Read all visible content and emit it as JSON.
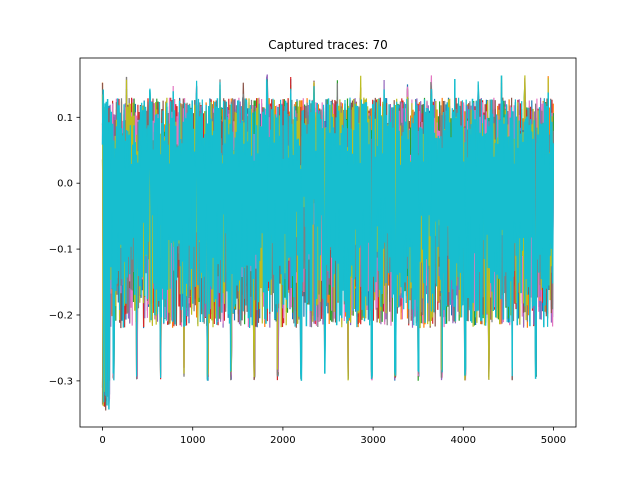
{
  "chart_data": {
    "type": "line",
    "title": "Captured traces: 70",
    "xlabel": "",
    "ylabel": "",
    "xlim": [
      -250,
      5250
    ],
    "ylim": [
      -0.37,
      0.19
    ],
    "x_ticks": [
      0,
      1000,
      2000,
      3000,
      4000,
      5000
    ],
    "x_tick_labels": [
      "0",
      "1000",
      "2000",
      "3000",
      "4000",
      "5000"
    ],
    "y_ticks": [
      -0.3,
      -0.2,
      -0.1,
      0.0,
      0.1
    ],
    "y_tick_labels": [
      "−0.3",
      "−0.2",
      "−0.1",
      "0.0",
      "0.1"
    ],
    "grid": false,
    "legend": "none",
    "trace_count": 70,
    "samples_per_trace": 5000,
    "envelope": {
      "typical_max": 0.13,
      "peak_max": 0.165,
      "typical_min": -0.26,
      "peak_min": -0.345,
      "spike_period_samples": 260
    },
    "series_colors": [
      "#1f77b4",
      "#ff7f0e",
      "#2ca02c",
      "#d62728",
      "#9467bd",
      "#8c564b",
      "#e377c2",
      "#7f7f7f",
      "#bcbd22",
      "#17becf"
    ],
    "top_color": "#17becf"
  }
}
